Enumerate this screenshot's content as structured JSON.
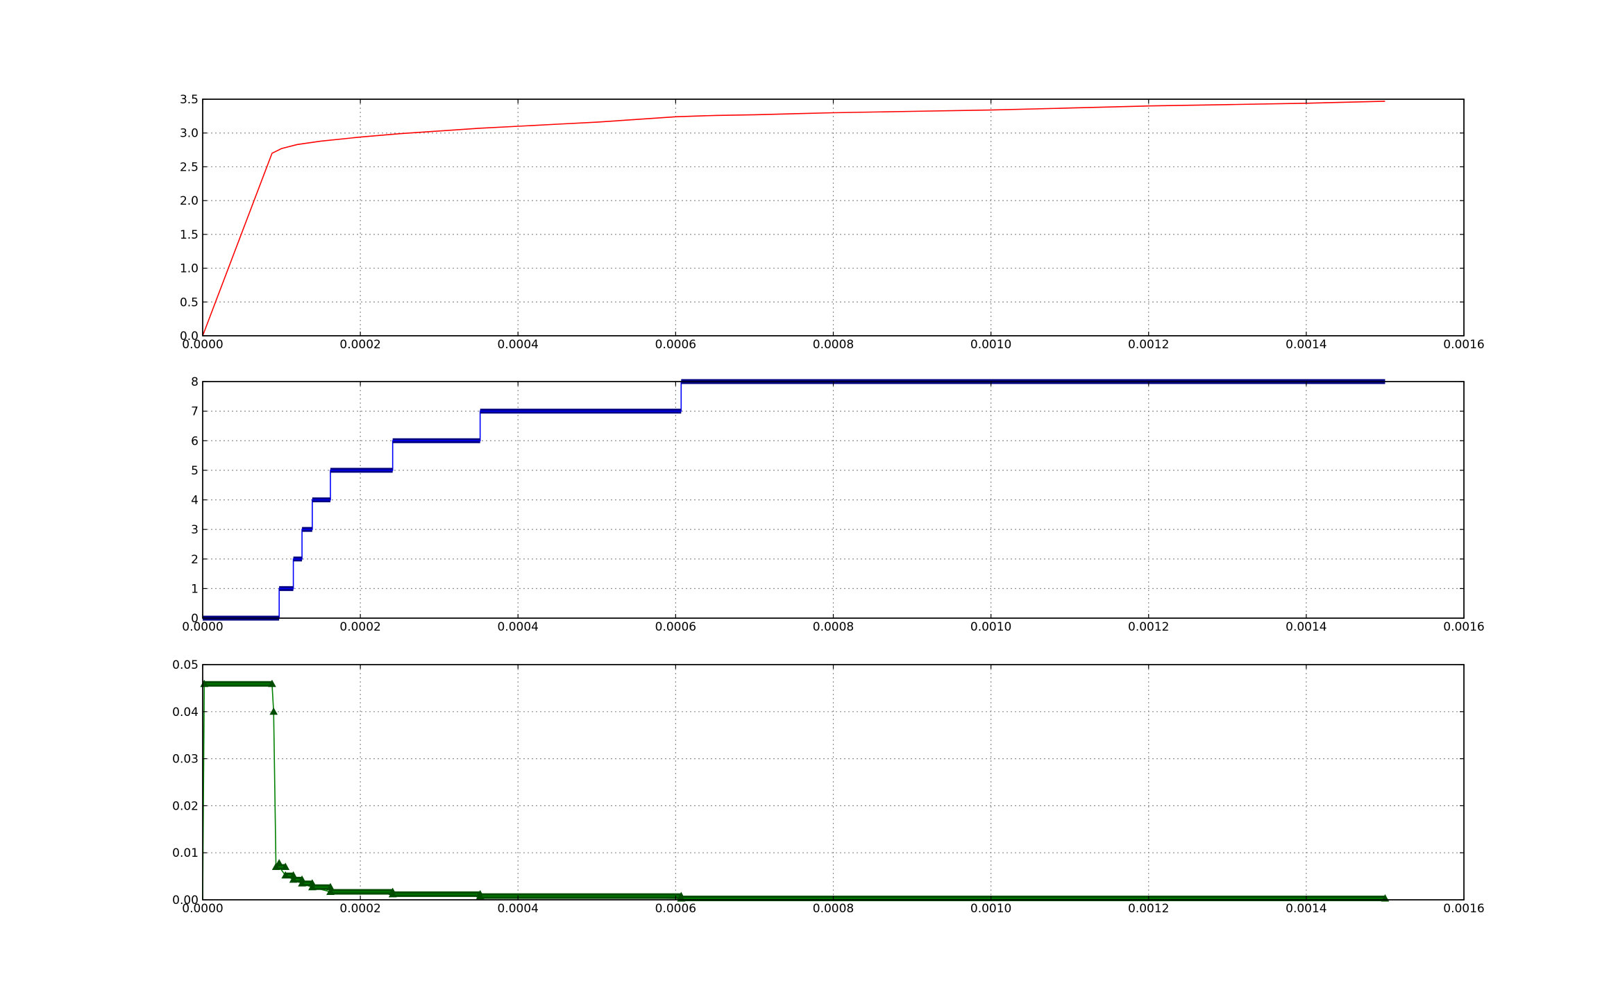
{
  "chart_data": [
    {
      "type": "line",
      "title": "",
      "xlabel": "",
      "ylabel": "",
      "xlim": [
        0,
        0.0016
      ],
      "ylim": [
        0,
        3.5
      ],
      "xticks": [
        "0.0000",
        "0.0002",
        "0.0004",
        "0.0006",
        "0.0008",
        "0.0010",
        "0.0012",
        "0.0014",
        "0.0016"
      ],
      "yticks": [
        "0.0",
        "0.5",
        "1.0",
        "1.5",
        "2.0",
        "2.5",
        "3.0",
        "3.5"
      ],
      "grid": true,
      "series": [
        {
          "color": "#ff0000",
          "marker": "none",
          "x": [
            0,
            8.8e-05,
            0.0001,
            0.00012,
            0.00015,
            0.0002,
            0.00025,
            0.0003,
            0.00035,
            0.0004,
            0.00045,
            0.0005,
            0.00055,
            0.0006,
            0.00065,
            0.0007,
            0.0008,
            0.0009,
            0.001,
            0.0011,
            0.0012,
            0.0013,
            0.0014,
            0.0015
          ],
          "y": [
            0,
            2.7,
            2.77,
            2.83,
            2.88,
            2.94,
            2.99,
            3.03,
            3.07,
            3.1,
            3.13,
            3.16,
            3.2,
            3.24,
            3.26,
            3.27,
            3.3,
            3.32,
            3.34,
            3.37,
            3.4,
            3.42,
            3.44,
            3.47
          ]
        }
      ]
    },
    {
      "type": "line",
      "title": "",
      "xlabel": "",
      "ylabel": "",
      "xlim": [
        0,
        0.0016
      ],
      "ylim": [
        0,
        8
      ],
      "xticks": [
        "0.0000",
        "0.0002",
        "0.0004",
        "0.0006",
        "0.0008",
        "0.0010",
        "0.0012",
        "0.0014",
        "0.0016"
      ],
      "yticks": [
        "0",
        "1",
        "2",
        "3",
        "4",
        "5",
        "6",
        "7",
        "8"
      ],
      "grid": true,
      "series": [
        {
          "color": "#0000ff",
          "marker": "square",
          "marker_color": "#000080",
          "steps": [
            {
              "x0": 0,
              "x1": 9.7e-05,
              "y": 0
            },
            {
              "x0": 9.7e-05,
              "x1": 0.000115,
              "y": 1
            },
            {
              "x0": 0.000115,
              "x1": 0.000126,
              "y": 2
            },
            {
              "x0": 0.000126,
              "x1": 0.000139,
              "y": 3
            },
            {
              "x0": 0.000139,
              "x1": 0.000162,
              "y": 4
            },
            {
              "x0": 0.000162,
              "x1": 0.000241,
              "y": 5
            },
            {
              "x0": 0.000241,
              "x1": 0.000352,
              "y": 6
            },
            {
              "x0": 0.000352,
              "x1": 0.000607,
              "y": 7
            },
            {
              "x0": 0.000607,
              "x1": 0.0015,
              "y": 8
            }
          ]
        }
      ]
    },
    {
      "type": "line",
      "title": "",
      "xlabel": "",
      "ylabel": "",
      "xlim": [
        0,
        0.0016
      ],
      "ylim": [
        0,
        0.05
      ],
      "xticks": [
        "0.0000",
        "0.0002",
        "0.0004",
        "0.0006",
        "0.0008",
        "0.0010",
        "0.0012",
        "0.0014",
        "0.0016"
      ],
      "yticks": [
        "0.00",
        "0.01",
        "0.02",
        "0.03",
        "0.04",
        "0.05"
      ],
      "grid": true,
      "series": [
        {
          "color": "#008000",
          "marker": "triangle",
          "marker_color": "#004d00",
          "x": [
            0,
            2e-06,
            8.8e-05,
            9e-05,
            9.3e-05,
            9.7e-05,
            0.000105,
            0.000115,
            0.000126,
            0.000139,
            0.000162,
            0.000241,
            0.000352,
            0.000607,
            0.0015
          ],
          "y": [
            0,
            0.0459,
            0.0459,
            0.04,
            0.007,
            0.007,
            0.0052,
            0.0043,
            0.0035,
            0.0027,
            0.0017,
            0.0012,
            0.0008,
            0.0003,
            0.0003
          ],
          "steps": [
            {
              "x0": 2e-06,
              "x1": 8.8e-05,
              "y": 0.0459
            },
            {
              "x0": 9.3e-05,
              "x1": 0.000105,
              "y": 0.007
            },
            {
              "x0": 0.000105,
              "x1": 0.000115,
              "y": 0.0052
            },
            {
              "x0": 0.000115,
              "x1": 0.000126,
              "y": 0.0043
            },
            {
              "x0": 0.000126,
              "x1": 0.000139,
              "y": 0.0035
            },
            {
              "x0": 0.000139,
              "x1": 0.000162,
              "y": 0.0027
            },
            {
              "x0": 0.000162,
              "x1": 0.000241,
              "y": 0.0017
            },
            {
              "x0": 0.000241,
              "x1": 0.000352,
              "y": 0.0012
            },
            {
              "x0": 0.000352,
              "x1": 0.000607,
              "y": 0.0008
            },
            {
              "x0": 0.000607,
              "x1": 0.0015,
              "y": 0.0003
            }
          ]
        }
      ]
    }
  ]
}
